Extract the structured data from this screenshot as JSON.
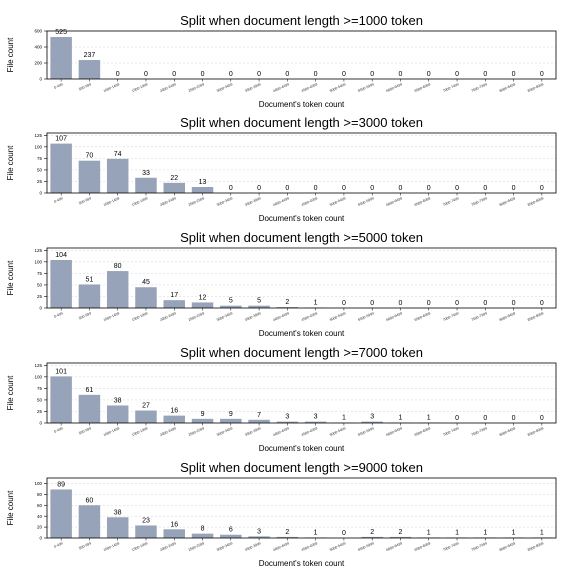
{
  "chart_data": [
    {
      "type": "bar",
      "title": "Split when document length >=1000 token",
      "xlabel": "Document's token count",
      "ylabel": "File count",
      "categories": [
        "0-499",
        "500-999",
        "1000-1499",
        "1500-1999",
        "2000-2499",
        "2500-2999",
        "3000-3499",
        "3500-3999",
        "4000-4499",
        "4500-4999",
        "5000-5499",
        "5500-5999",
        "6000-6499",
        "6500-6999",
        "7000-7499",
        "7500-7999",
        "8000-8499",
        "8500-8999"
      ],
      "values": [
        525,
        237,
        0,
        0,
        0,
        0,
        0,
        0,
        0,
        0,
        0,
        0,
        0,
        0,
        0,
        0,
        0,
        0
      ],
      "ylim": [
        0,
        600
      ],
      "yticks": [
        0,
        200,
        400,
        600
      ],
      "grid": true,
      "bar_color": "#96a3b8"
    },
    {
      "type": "bar",
      "title": "Split when document length >=3000 token",
      "xlabel": "Document's token count",
      "ylabel": "File count",
      "categories": [
        "0-499",
        "500-999",
        "1000-1499",
        "1500-1999",
        "2000-2499",
        "2500-2999",
        "3000-3499",
        "3500-3999",
        "4000-4499",
        "4500-4999",
        "5000-5499",
        "5500-5999",
        "6000-6499",
        "6500-6999",
        "7000-7499",
        "7500-7999",
        "8000-8499",
        "8500-8999"
      ],
      "values": [
        107,
        70,
        74,
        33,
        22,
        13,
        0,
        0,
        0,
        0,
        0,
        0,
        0,
        0,
        0,
        0,
        0,
        0
      ],
      "ylim": [
        0,
        130
      ],
      "yticks": [
        0,
        25,
        50,
        75,
        100,
        125
      ],
      "grid": true,
      "bar_color": "#96a3b8"
    },
    {
      "type": "bar",
      "title": "Split when document length >=5000 token",
      "xlabel": "Document's token count",
      "ylabel": "File count",
      "categories": [
        "0-499",
        "500-999",
        "1000-1499",
        "1500-1999",
        "2000-2499",
        "2500-2999",
        "3000-3499",
        "3500-3999",
        "4000-4499",
        "4500-4999",
        "5000-5499",
        "5500-5999",
        "6000-6499",
        "6500-6999",
        "7000-7499",
        "7500-7999",
        "8000-8499",
        "8500-8999"
      ],
      "values": [
        104,
        51,
        80,
        45,
        17,
        12,
        5,
        5,
        2,
        1,
        0,
        0,
        0,
        0,
        0,
        0,
        0,
        0
      ],
      "ylim": [
        0,
        130
      ],
      "yticks": [
        0,
        25,
        50,
        75,
        100,
        125
      ],
      "grid": true,
      "bar_color": "#96a3b8"
    },
    {
      "type": "bar",
      "title": "Split when document length >=7000 token",
      "xlabel": "Document's token count",
      "ylabel": "File count",
      "categories": [
        "0-499",
        "500-999",
        "1000-1499",
        "1500-1999",
        "2000-2499",
        "2500-2999",
        "3000-3499",
        "3500-3999",
        "4000-4499",
        "4500-4999",
        "5000-5499",
        "5500-5999",
        "6000-6499",
        "6500-6999",
        "7000-7499",
        "7500-7999",
        "8000-8499",
        "8500-8999"
      ],
      "values": [
        101,
        61,
        38,
        27,
        16,
        9,
        9,
        7,
        3,
        3,
        1,
        3,
        1,
        1,
        0,
        0,
        0,
        0
      ],
      "ylim": [
        0,
        130
      ],
      "yticks": [
        0,
        25,
        50,
        75,
        100,
        125
      ],
      "grid": true,
      "bar_color": "#96a3b8"
    },
    {
      "type": "bar",
      "title": "Split when document length >=9000 token",
      "xlabel": "Document's token count",
      "ylabel": "File count",
      "categories": [
        "0-499",
        "500-999",
        "1000-1499",
        "1500-1999",
        "2000-2499",
        "2500-2999",
        "3000-3499",
        "3500-3999",
        "4000-4499",
        "4500-4999",
        "5000-5499",
        "5500-5999",
        "6000-6499",
        "6500-6999",
        "7000-7499",
        "7500-7999",
        "8000-8499",
        "8500-8999"
      ],
      "values": [
        89,
        60,
        38,
        23,
        16,
        8,
        6,
        3,
        2,
        1,
        0,
        2,
        2,
        1,
        1,
        1,
        1,
        1
      ],
      "ylim": [
        0,
        110
      ],
      "yticks": [
        0,
        20,
        40,
        60,
        80,
        100
      ],
      "grid": true,
      "bar_color": "#96a3b8"
    }
  ]
}
